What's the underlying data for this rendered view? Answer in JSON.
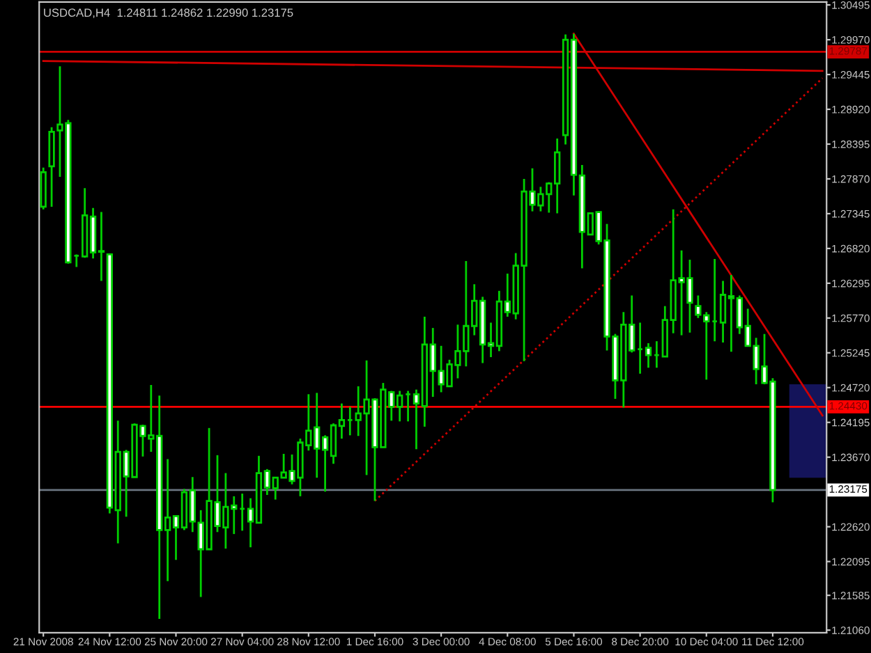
{
  "chart_data": {
    "type": "candlestick",
    "title": "USDCAD,H4  1.24811 1.24862 1.22990 1.23175",
    "categories": [
      "21 Nov 2008",
      null,
      null,
      null,
      null,
      null,
      null,
      null,
      "24 Nov 12:00",
      null,
      null,
      null,
      null,
      null,
      null,
      null,
      "25 Nov 20:00",
      null,
      null,
      null,
      null,
      null,
      null,
      null,
      "27 Nov 04:00",
      null,
      null,
      null,
      null,
      null,
      null,
      null,
      "28 Nov 12:00",
      null,
      null,
      null,
      null,
      null,
      null,
      null,
      "1 Dec 16:00",
      null,
      null,
      null,
      null,
      null,
      null,
      null,
      "3 Dec 00:00",
      null,
      null,
      null,
      null,
      null,
      null,
      null,
      "4 Dec 08:00",
      null,
      null,
      null,
      null,
      null,
      null,
      null,
      "5 Dec 16:00",
      null,
      null,
      null,
      null,
      null,
      null,
      null,
      "8 Dec 20:00",
      null,
      null,
      null,
      null,
      null,
      null,
      null,
      "10 Dec 04:00",
      null,
      null,
      null,
      null,
      null,
      null,
      null,
      "11 Dec 12:00",
      null,
      null,
      null,
      null,
      null,
      null
    ],
    "series": [
      {
        "type": "line",
        "color": "#d00000",
        "line_style": "solid",
        "values": [
          1.2965,
          null,
          null,
          null,
          null,
          null,
          null,
          null,
          null,
          null,
          null,
          null,
          null,
          null,
          null,
          null,
          null,
          null,
          null,
          null,
          null,
          null,
          null,
          null,
          null,
          null,
          null,
          null,
          null,
          null,
          null,
          null,
          null,
          null,
          null,
          null,
          null,
          null,
          null,
          null,
          null,
          null,
          null,
          null,
          null,
          null,
          null,
          null,
          null,
          null,
          null,
          null,
          null,
          null,
          null,
          null,
          null,
          null,
          null,
          null,
          null,
          null,
          null,
          null,
          null,
          null,
          null,
          null,
          null,
          null,
          null,
          null,
          null,
          null,
          null,
          null,
          null,
          null,
          null,
          null,
          null,
          null,
          null,
          null,
          null,
          null,
          null,
          null,
          null,
          null,
          null,
          null,
          null,
          null,
          1.295
        ]
      },
      {
        "type": "line",
        "color": "#d00000",
        "line_style": "solid",
        "values": [
          null,
          null,
          null,
          null,
          null,
          null,
          null,
          null,
          null,
          null,
          null,
          null,
          null,
          null,
          null,
          null,
          null,
          null,
          null,
          null,
          null,
          null,
          null,
          null,
          null,
          null,
          null,
          null,
          null,
          null,
          null,
          null,
          null,
          null,
          null,
          null,
          null,
          null,
          null,
          null,
          null,
          null,
          null,
          null,
          null,
          null,
          null,
          null,
          null,
          null,
          null,
          null,
          null,
          null,
          null,
          null,
          null,
          null,
          null,
          null,
          null,
          null,
          null,
          null,
          1.3006,
          null,
          null,
          null,
          null,
          null,
          null,
          null,
          null,
          null,
          null,
          null,
          null,
          null,
          null,
          null,
          null,
          null,
          null,
          null,
          null,
          null,
          null,
          null,
          null,
          null,
          null,
          null,
          null,
          null,
          1.243
        ]
      },
      {
        "type": "line",
        "color": "#d00000",
        "line_style": "dotted",
        "values": [
          null,
          null,
          null,
          null,
          null,
          null,
          null,
          null,
          null,
          null,
          null,
          null,
          null,
          null,
          null,
          null,
          null,
          null,
          null,
          null,
          null,
          null,
          null,
          null,
          null,
          null,
          null,
          null,
          null,
          null,
          null,
          null,
          null,
          null,
          null,
          null,
          null,
          null,
          null,
          null,
          1.2301,
          null,
          null,
          null,
          null,
          null,
          null,
          null,
          null,
          null,
          null,
          null,
          null,
          null,
          null,
          null,
          null,
          null,
          null,
          null,
          null,
          null,
          null,
          null,
          null,
          null,
          null,
          null,
          null,
          null,
          null,
          null,
          null,
          null,
          null,
          null,
          null,
          null,
          null,
          null,
          null,
          null,
          null,
          null,
          null,
          null,
          null,
          null,
          null,
          null,
          null,
          null,
          null,
          null,
          1.2939
        ]
      }
    ],
    "color": "#00d000",
    "ohlc": [
      [
        1.2745,
        1.2804,
        1.2741,
        1.2797
      ],
      [
        1.2806,
        1.2865,
        1.2745,
        1.2858
      ],
      [
        1.286,
        1.2957,
        1.279,
        1.2869
      ],
      [
        1.2871,
        1.2876,
        1.2659,
        1.2661
      ],
      [
        1.2671,
        1.2673,
        1.2654,
        1.2671
      ],
      [
        1.267,
        1.2773,
        1.2668,
        1.2732
      ],
      [
        1.273,
        1.2743,
        1.2667,
        1.2676
      ],
      [
        1.2677,
        1.2737,
        1.2633,
        1.2678
      ],
      [
        1.2673,
        1.2674,
        1.2282,
        1.2291
      ],
      [
        1.2287,
        1.2422,
        1.2237,
        1.2375
      ],
      [
        1.2375,
        1.2378,
        1.2277,
        1.2338
      ],
      [
        1.2337,
        1.2418,
        1.2337,
        1.2416
      ],
      [
        1.2414,
        1.2416,
        1.2368,
        1.2399
      ],
      [
        1.2395,
        1.2476,
        1.2375,
        1.24
      ],
      [
        1.2399,
        1.246,
        1.2123,
        1.2257
      ],
      [
        1.2257,
        1.2364,
        1.218,
        1.2276
      ],
      [
        1.2278,
        1.2278,
        1.2212,
        1.2261
      ],
      [
        1.2261,
        1.2319,
        1.2257,
        1.2314
      ],
      [
        1.2317,
        1.2337,
        1.2254,
        1.227
      ],
      [
        1.2268,
        1.2287,
        1.2156,
        1.2228
      ],
      [
        1.2228,
        1.2411,
        1.2228,
        1.2301
      ],
      [
        1.2299,
        1.237,
        1.2254,
        1.2263
      ],
      [
        1.2261,
        1.2343,
        1.2229,
        1.2292
      ],
      [
        1.2294,
        1.2308,
        1.2251,
        1.2289
      ],
      [
        1.2289,
        1.2312,
        1.2256,
        1.2289
      ],
      [
        1.2289,
        1.2305,
        1.2231,
        1.227
      ],
      [
        1.2268,
        1.2369,
        1.2268,
        1.2343
      ],
      [
        1.2346,
        1.2349,
        1.231,
        1.2321
      ],
      [
        1.232,
        1.2337,
        1.2303,
        1.2336
      ],
      [
        1.2336,
        1.2372,
        1.2336,
        1.2344
      ],
      [
        1.2346,
        1.2371,
        1.2326,
        1.2331
      ],
      [
        1.2336,
        1.2395,
        1.2308,
        1.2389
      ],
      [
        1.2385,
        1.2462,
        1.2377,
        1.2407
      ],
      [
        1.2412,
        1.2464,
        1.2336,
        1.238
      ],
      [
        1.2397,
        1.24,
        1.2315,
        1.2378
      ],
      [
        1.2369,
        1.2418,
        1.2357,
        1.2415
      ],
      [
        1.2414,
        1.2448,
        1.2395,
        1.2423
      ],
      [
        1.2423,
        1.2443,
        1.24,
        1.2423
      ],
      [
        1.2423,
        1.2474,
        1.2399,
        1.2433
      ],
      [
        1.2433,
        1.2513,
        1.234,
        1.2454
      ],
      [
        1.2454,
        1.2456,
        1.2301,
        1.2382
      ],
      [
        1.2382,
        1.2479,
        1.2382,
        1.2469
      ],
      [
        1.2465,
        1.2467,
        1.2422,
        1.2443
      ],
      [
        1.2443,
        1.2467,
        1.2421,
        1.246
      ],
      [
        1.2462,
        1.2467,
        1.2421,
        1.2462
      ],
      [
        1.2462,
        1.2469,
        1.2379,
        1.2448
      ],
      [
        1.2444,
        1.2579,
        1.2413,
        1.2537
      ],
      [
        1.2537,
        1.2562,
        1.2458,
        1.2497
      ],
      [
        1.2497,
        1.2535,
        1.2465,
        1.2477
      ],
      [
        1.2474,
        1.2514,
        1.2474,
        1.2507
      ],
      [
        1.2506,
        1.2567,
        1.2486,
        1.2527
      ],
      [
        1.2527,
        1.2663,
        1.2504,
        1.2565
      ],
      [
        1.2565,
        1.2628,
        1.2551,
        1.2603
      ],
      [
        1.2603,
        1.2609,
        1.2509,
        1.2537
      ],
      [
        1.2539,
        1.257,
        1.2518,
        1.2535
      ],
      [
        1.2535,
        1.2618,
        1.2527,
        1.2602
      ],
      [
        1.2602,
        1.2644,
        1.2579,
        1.2586
      ],
      [
        1.2584,
        1.2675,
        1.2575,
        1.2656
      ],
      [
        1.2656,
        1.2787,
        1.2512,
        1.2768
      ],
      [
        1.2768,
        1.2803,
        1.2738,
        1.2748
      ],
      [
        1.2747,
        1.2775,
        1.2738,
        1.2764
      ],
      [
        1.2764,
        1.2782,
        1.2736,
        1.278
      ],
      [
        1.278,
        1.2848,
        1.2735,
        1.2827
      ],
      [
        1.2853,
        1.3005,
        1.2839,
        1.2997
      ],
      [
        1.2997,
        1.3006,
        1.2762,
        1.2793
      ],
      [
        1.2792,
        1.2808,
        1.2652,
        1.2707
      ],
      [
        1.2703,
        1.2736,
        1.2702,
        1.2735
      ],
      [
        1.2737,
        1.2738,
        1.2688,
        1.2693
      ],
      [
        1.2694,
        1.2719,
        1.2528,
        1.2549
      ],
      [
        1.2549,
        1.2553,
        1.2455,
        1.2483
      ],
      [
        1.2483,
        1.2586,
        1.2442,
        1.2567
      ],
      [
        1.2567,
        1.2611,
        1.2525,
        1.2528
      ],
      [
        1.253,
        1.257,
        1.2493,
        1.253
      ],
      [
        1.2532,
        1.2539,
        1.2502,
        1.2521
      ],
      [
        1.2521,
        1.2542,
        1.2502,
        1.2521
      ],
      [
        1.2519,
        1.2595,
        1.2519,
        1.2574
      ],
      [
        1.2574,
        1.2741,
        1.2554,
        1.2634
      ],
      [
        1.2637,
        1.2679,
        1.2551,
        1.2631
      ],
      [
        1.2637,
        1.2665,
        1.2555,
        1.26
      ],
      [
        1.2595,
        1.2611,
        1.2577,
        1.2582
      ],
      [
        1.2581,
        1.2586,
        1.2484,
        1.2572
      ],
      [
        1.2572,
        1.2666,
        1.2542,
        1.2572
      ],
      [
        1.257,
        1.2633,
        1.254,
        1.2612
      ],
      [
        1.261,
        1.2642,
        1.2526,
        1.2607
      ],
      [
        1.2607,
        1.2611,
        1.2553,
        1.2563
      ],
      [
        1.2565,
        1.2591,
        1.2535,
        1.2535
      ],
      [
        1.2535,
        1.2547,
        1.2477,
        1.25
      ],
      [
        1.2504,
        1.2553,
        1.2477,
        1.2479
      ],
      [
        1.24811,
        1.24862,
        1.2299,
        1.23175
      ],
      null,
      null,
      null,
      null,
      null,
      null
    ],
    "ylim": [
      1.2102,
      1.3054
    ],
    "yticks": [
      {
        "value": 1.30495,
        "label": "1.30495"
      },
      {
        "value": 1.2997,
        "label": "1.29970"
      },
      {
        "value": 1.29445,
        "label": "1.29445"
      },
      {
        "value": 1.2892,
        "label": "1.28920"
      },
      {
        "value": 1.28395,
        "label": "1.28395"
      },
      {
        "value": 1.2787,
        "label": "1.27870"
      },
      {
        "value": 1.27345,
        "label": "1.27345"
      },
      {
        "value": 1.2682,
        "label": "1.26820"
      },
      {
        "value": 1.26295,
        "label": "1.26295"
      },
      {
        "value": 1.2577,
        "label": "1.25770"
      },
      {
        "value": 1.25245,
        "label": "1.25245"
      },
      {
        "value": 1.2472,
        "label": "1.24720"
      },
      {
        "value": 1.24195,
        "label": "1.24195"
      },
      {
        "value": 1.2367,
        "label": "1.23670"
      },
      {
        "value": 1.2262,
        "label": "1.22620"
      },
      {
        "value": 1.22095,
        "label": "1.22095"
      },
      {
        "value": 1.21585,
        "label": "1.21585"
      },
      {
        "value": 1.2106,
        "label": "1.21060"
      }
    ],
    "ref_lines": [
      {
        "axis": "y",
        "value": 1.29787,
        "label": "1.29787",
        "color": "#d00000",
        "line_style": "solid"
      },
      {
        "axis": "y",
        "value": 1.2443,
        "label": "1.24430",
        "color": "#ff0000",
        "line_style": "solid"
      },
      {
        "axis": "y",
        "value": 1.23175,
        "label": "1.23175",
        "color": "#6a7480",
        "line_style": "solid"
      }
    ],
    "bands": [
      {
        "axis": "y",
        "from": 1.2336,
        "to": 1.2477,
        "color": "#14145a"
      }
    ],
    "grid": false,
    "legend": false
  }
}
